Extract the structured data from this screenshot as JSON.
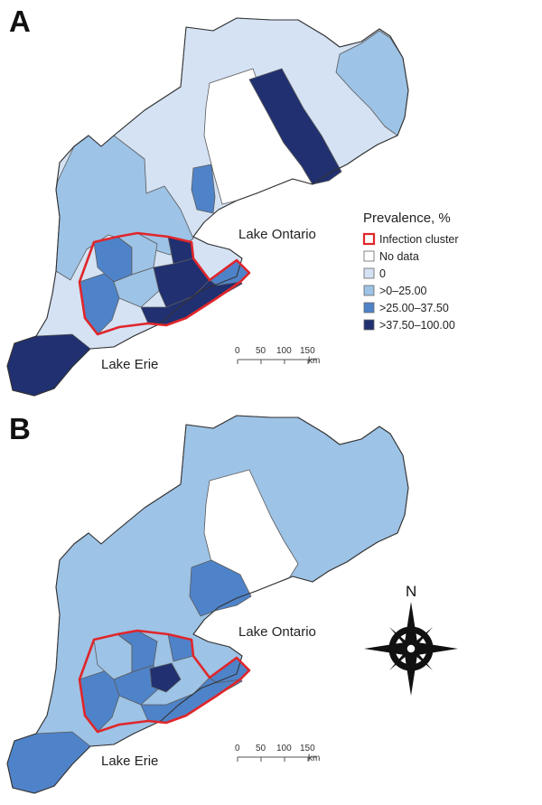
{
  "colors": {
    "no_data": "#ffffff",
    "zero": "#d4e2f4",
    "low": "#9dc3e6",
    "mid": "#4f83c9",
    "high": "#203070",
    "cluster_outline": "#e0262a"
  },
  "panel_a": {
    "letter": "A"
  },
  "panel_b": {
    "letter": "B"
  },
  "labels": {
    "lake_ontario": "Lake Ontario",
    "lake_erie": "Lake Erie"
  },
  "legend": {
    "title": "Prevalence, %",
    "items": [
      {
        "label": "Infection cluster",
        "kind": "cluster"
      },
      {
        "label": "No data",
        "kind": "no_data"
      },
      {
        "label": "0",
        "kind": "zero"
      },
      {
        "label": ">0–25.00",
        "kind": "low"
      },
      {
        "label": ">25.00–37.50",
        "kind": "mid"
      },
      {
        "label": ">37.50–100.00",
        "kind": "high"
      }
    ]
  },
  "scale_bar": {
    "ticks": [
      "0",
      "50",
      "100",
      "150"
    ],
    "unit": "km"
  },
  "compass": {
    "north": "N"
  }
}
